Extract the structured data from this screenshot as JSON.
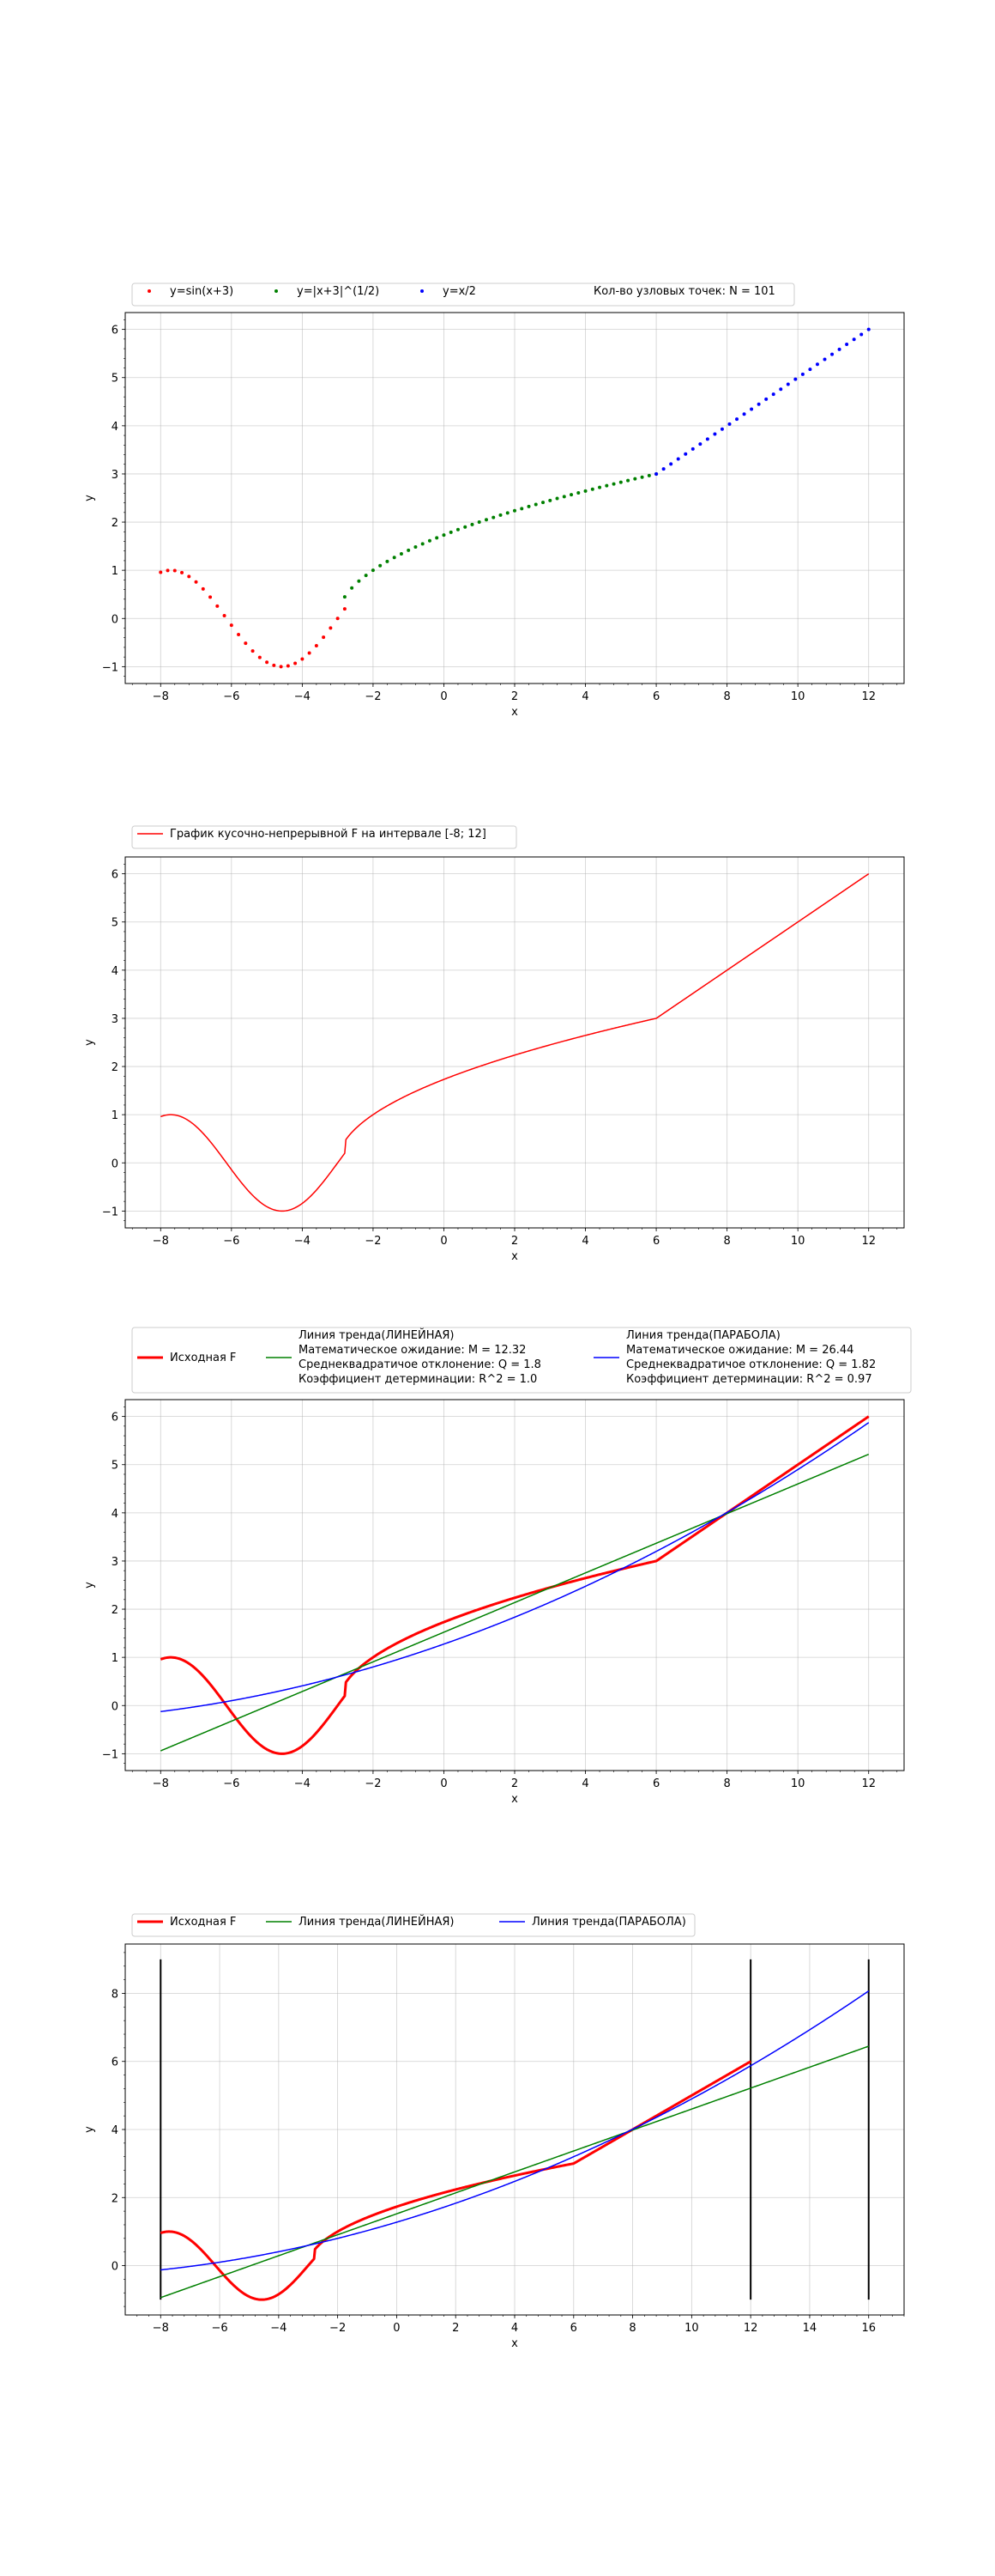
{
  "chart_data": [
    {
      "type": "scatter",
      "title": "",
      "xlabel": "x",
      "ylabel": "y",
      "xlim": [
        -9,
        13
      ],
      "ylim": [
        -1.35,
        6.35
      ],
      "xticks": [
        -8,
        -6,
        -4,
        -2,
        0,
        2,
        4,
        6,
        8,
        10,
        12
      ],
      "yticks": [
        -1,
        0,
        1,
        2,
        3,
        4,
        5,
        6
      ],
      "grid": true,
      "legend_position": "top-left, above plot",
      "legend_note": "Кол-во узловых точек: N = 101",
      "series": [
        {
          "name": "y=sin(x+3)",
          "color": "#ff0000",
          "marker": "dot",
          "x_range": [
            -8,
            -2.8
          ],
          "points": 27,
          "formula": "sin"
        },
        {
          "name": "y=|x+3|^(1/2)",
          "color": "#008000",
          "marker": "dot",
          "x_range": [
            -2.8,
            6
          ],
          "points": 45,
          "formula": "sqrt"
        },
        {
          "name": "y=x/2",
          "color": "#0000ff",
          "marker": "dot",
          "x_range": [
            6,
            12
          ],
          "points": 30,
          "formula": "half"
        }
      ]
    },
    {
      "type": "line",
      "title": "",
      "xlabel": "x",
      "ylabel": "y",
      "xlim": [
        -9,
        13
      ],
      "ylim": [
        -1.35,
        6.35
      ],
      "xticks": [
        -8,
        -6,
        -4,
        -2,
        0,
        2,
        4,
        6,
        8,
        10,
        12
      ],
      "yticks": [
        -1,
        0,
        1,
        2,
        3,
        4,
        5,
        6
      ],
      "grid": true,
      "legend_position": "top-left, above plot",
      "series": [
        {
          "name": "График кусочно-непрерывной F на интервале [-8; 12]",
          "color": "#ff0000",
          "width": 1.5,
          "x_range": [
            -8,
            12
          ],
          "formula": "F"
        }
      ]
    },
    {
      "type": "line",
      "title": "",
      "xlabel": "x",
      "ylabel": "y",
      "xlim": [
        -9,
        13
      ],
      "ylim": [
        -1.35,
        6.35
      ],
      "xticks": [
        -8,
        -6,
        -4,
        -2,
        0,
        2,
        4,
        6,
        8,
        10,
        12
      ],
      "yticks": [
        -1,
        0,
        1,
        2,
        3,
        4,
        5,
        6
      ],
      "grid": true,
      "legend_position": "top, above plot",
      "series": [
        {
          "name": "Исходная F",
          "color": "#ff0000",
          "width": 3,
          "x_range": [
            -8,
            12
          ],
          "formula": "F"
        },
        {
          "name": "Линия тренда(ЛИНЕЙНАЯ)\nМатематическое ожидание: M = 12.32\nСреднеквадратичое отклонение: Q = 1.8\nКоэффициент детерминации: R^2 = 1.0",
          "color": "#008000",
          "width": 1.5,
          "x_range": [
            -8,
            12
          ],
          "formula": "linear",
          "coefficients": [
            1.5222,
            0.3078
          ]
        },
        {
          "name": "Линия тренда(ПАРАБОЛА)\nМатематическое ожидание: M = 26.44\nСреднеквадратичое отклонение: Q = 1.82\nКоэффициент детерминации: R^2 = 0.97",
          "color": "#0000ff",
          "width": 1.5,
          "x_range": [
            -8,
            12
          ],
          "formula": "quadratic",
          "coefficients": [
            1.2756,
            0.2583,
            0.0104
          ]
        }
      ]
    },
    {
      "type": "line",
      "title": "",
      "xlabel": "x",
      "ylabel": "y",
      "xlim": [
        -9.2,
        17.2
      ],
      "ylim": [
        -1.45,
        9.45
      ],
      "xticks": [
        -8,
        -6,
        -4,
        -2,
        0,
        2,
        4,
        6,
        8,
        10,
        12,
        14,
        16
      ],
      "yticks": [
        0,
        2,
        4,
        6,
        8
      ],
      "grid": true,
      "legend_position": "top-left, above plot",
      "vertical_lines": [
        {
          "x": -8,
          "y_range": [
            -1,
            9
          ]
        },
        {
          "x": 12,
          "y_range": [
            -1,
            9
          ]
        },
        {
          "x": 16,
          "y_range": [
            -1,
            9
          ]
        }
      ],
      "series": [
        {
          "name": "Исходная F",
          "color": "#ff0000",
          "width": 3,
          "x_range": [
            -8,
            12
          ],
          "formula": "F"
        },
        {
          "name": "Линия тренда(ЛИНЕЙНАЯ)",
          "color": "#008000",
          "width": 1.5,
          "x_range": [
            -8,
            16
          ],
          "formula": "linear",
          "coefficients": [
            1.5222,
            0.3078
          ]
        },
        {
          "name": "Линия тренда(ПАРАБОЛА)",
          "color": "#0000ff",
          "width": 1.5,
          "x_range": [
            -8,
            16
          ],
          "formula": "quadratic",
          "coefficients": [
            1.2756,
            0.2583,
            0.0104
          ]
        }
      ]
    }
  ]
}
